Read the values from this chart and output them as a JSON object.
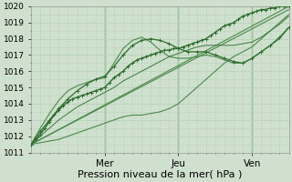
{
  "xlabel": "Pression niveau de la mer( hPa )",
  "bg_color": "#cfe0cf",
  "grid_color": "#b8d4b8",
  "ylim": [
    1011,
    1020
  ],
  "yticks": [
    1011,
    1012,
    1013,
    1014,
    1015,
    1016,
    1017,
    1018,
    1019,
    1020
  ],
  "xlim": [
    0,
    168
  ],
  "series": [
    {
      "x": [
        0,
        168
      ],
      "y": [
        1011.5,
        1019.8
      ],
      "color": "#4a8a4a",
      "lw": 0.8,
      "marker": null,
      "zorder": 2
    },
    {
      "x": [
        0,
        168
      ],
      "y": [
        1011.5,
        1020.0
      ],
      "color": "#4a8a4a",
      "lw": 0.8,
      "marker": null,
      "zorder": 2
    },
    {
      "x": [
        0,
        6,
        12,
        18,
        24,
        30,
        36,
        42,
        48,
        54,
        60,
        66,
        72,
        78,
        84,
        90,
        96,
        102,
        108,
        114,
        120,
        126,
        132,
        138,
        144,
        150,
        156,
        162,
        168
      ],
      "y": [
        1011.5,
        1011.6,
        1011.7,
        1011.8,
        1012.0,
        1012.2,
        1012.4,
        1012.6,
        1012.8,
        1013.0,
        1013.2,
        1013.3,
        1013.3,
        1013.4,
        1013.5,
        1013.7,
        1014.0,
        1014.5,
        1015.0,
        1015.5,
        1016.0,
        1016.5,
        1016.9,
        1017.2,
        1017.5,
        1018.0,
        1018.5,
        1019.0,
        1019.5
      ],
      "color": "#4a8a4a",
      "lw": 0.8,
      "marker": null,
      "zorder": 3
    },
    {
      "x": [
        0,
        3,
        6,
        9,
        12,
        15,
        18,
        21,
        24,
        27,
        30,
        33,
        36,
        39,
        42,
        45,
        48,
        51,
        54,
        57,
        60,
        63,
        66,
        69,
        72,
        75,
        78,
        81,
        84,
        87,
        90,
        93,
        96,
        99,
        102,
        105,
        108,
        111,
        114,
        117,
        120,
        123,
        126,
        129,
        132,
        135,
        138,
        141,
        144,
        147,
        150,
        153,
        156,
        159,
        162,
        165,
        168
      ],
      "y": [
        1011.5,
        1011.8,
        1012.1,
        1012.5,
        1012.9,
        1013.3,
        1013.6,
        1013.9,
        1014.1,
        1014.3,
        1014.4,
        1014.5,
        1014.6,
        1014.7,
        1014.8,
        1014.9,
        1015.0,
        1015.3,
        1015.6,
        1015.8,
        1016.0,
        1016.3,
        1016.5,
        1016.7,
        1016.8,
        1016.9,
        1017.0,
        1017.1,
        1017.2,
        1017.3,
        1017.3,
        1017.4,
        1017.4,
        1017.5,
        1017.6,
        1017.7,
        1017.8,
        1017.9,
        1018.0,
        1018.2,
        1018.4,
        1018.6,
        1018.8,
        1018.9,
        1019.0,
        1019.2,
        1019.4,
        1019.5,
        1019.6,
        1019.7,
        1019.8,
        1019.8,
        1019.9,
        1019.9,
        1020.0,
        1020.0,
        1020.0
      ],
      "color": "#2d6e2d",
      "lw": 1.0,
      "marker": "+",
      "markersize": 3.0,
      "zorder": 4
    },
    {
      "x": [
        0,
        6,
        12,
        18,
        24,
        30,
        36,
        42,
        48,
        54,
        60,
        66,
        72,
        78,
        84,
        90,
        96,
        102,
        108,
        114,
        120,
        126,
        132,
        138,
        144,
        150,
        156,
        162,
        168
      ],
      "y": [
        1011.5,
        1012.3,
        1013.0,
        1013.7,
        1014.3,
        1014.8,
        1015.2,
        1015.5,
        1015.7,
        1016.3,
        1017.0,
        1017.6,
        1017.9,
        1018.0,
        1017.9,
        1017.7,
        1017.4,
        1017.2,
        1017.2,
        1017.2,
        1017.0,
        1016.8,
        1016.6,
        1016.5,
        1016.8,
        1017.2,
        1017.6,
        1018.1,
        1018.7
      ],
      "color": "#2d6e2d",
      "lw": 0.9,
      "marker": "+",
      "markersize": 3.0,
      "zorder": 4
    },
    {
      "x": [
        0,
        6,
        12,
        18,
        24,
        30,
        36,
        42,
        48,
        54,
        60,
        66,
        72,
        78,
        84,
        90,
        96,
        102,
        108,
        114,
        120,
        126,
        132,
        138,
        144,
        150,
        156,
        162,
        168
      ],
      "y": [
        1011.5,
        1012.5,
        1013.4,
        1014.2,
        1014.8,
        1015.1,
        1015.3,
        1015.5,
        1015.6,
        1016.5,
        1017.4,
        1017.9,
        1018.1,
        1017.8,
        1017.3,
        1016.9,
        1016.8,
        1016.8,
        1016.9,
        1017.0,
        1016.9,
        1016.7,
        1016.5,
        1016.5,
        1016.8,
        1017.2,
        1017.6,
        1018.0,
        1018.7
      ],
      "color": "#4a8a4a",
      "lw": 0.8,
      "marker": null,
      "zorder": 3
    },
    {
      "x": [
        0,
        6,
        12,
        18,
        24,
        30,
        36,
        42,
        48,
        54,
        60,
        66,
        72,
        78,
        84,
        90,
        96,
        102,
        108,
        114,
        120,
        126,
        132,
        138,
        144,
        150,
        156,
        162,
        168
      ],
      "y": [
        1011.5,
        1012.0,
        1012.5,
        1013.0,
        1013.4,
        1013.8,
        1014.1,
        1014.4,
        1014.7,
        1015.0,
        1015.4,
        1015.7,
        1016.0,
        1016.3,
        1016.6,
        1016.9,
        1017.1,
        1017.3,
        1017.5,
        1017.6,
        1017.6,
        1017.6,
        1017.6,
        1017.7,
        1017.8,
        1018.1,
        1018.5,
        1018.9,
        1019.4
      ],
      "color": "#3a7a3a",
      "lw": 0.7,
      "marker": null,
      "zorder": 3
    }
  ],
  "xtick_positions": [
    48,
    96,
    144
  ],
  "xtick_labels": [
    "Mer",
    "Jeu",
    "Ven"
  ],
  "vline_positions": [
    48,
    96,
    144
  ],
  "vline_color": "#3a7a3a",
  "ytick_fontsize": 6.5,
  "xtick_fontsize": 7.5,
  "xlabel_fontsize": 8
}
